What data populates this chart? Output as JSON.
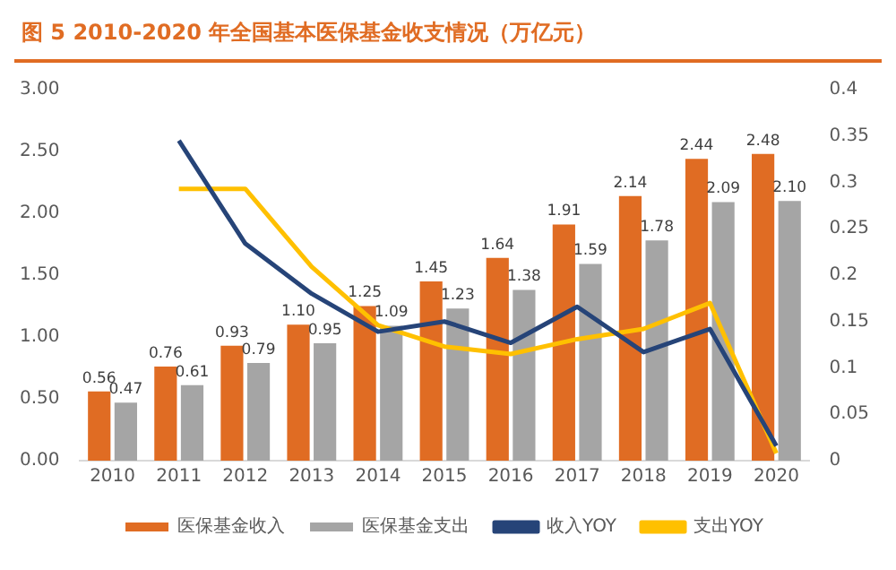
{
  "chart_data": {
    "type": "bar",
    "title": "图  5 2010-2020 年全国基本医保基金收支情况（万亿元）",
    "categories": [
      "2010",
      "2011",
      "2012",
      "2013",
      "2014",
      "2015",
      "2016",
      "2017",
      "2018",
      "2019",
      "2020"
    ],
    "series": [
      {
        "name": "医保基金收入",
        "color": "#e06c23",
        "values": [
          0.56,
          0.76,
          0.93,
          1.1,
          1.25,
          1.45,
          1.64,
          1.91,
          2.14,
          2.44,
          2.48
        ],
        "value_labels": [
          "0.56",
          "0.76",
          "0.93",
          "1.10",
          "1.25",
          "1.45",
          "1.64",
          "1.91",
          "2.14",
          "2.44",
          "2.48"
        ]
      },
      {
        "name": "医保基金支出",
        "color": "#a5a5a5",
        "values": [
          0.47,
          0.61,
          0.79,
          0.95,
          1.09,
          1.23,
          1.38,
          1.59,
          1.78,
          2.09,
          2.1
        ],
        "value_labels": [
          "0.47",
          "0.61",
          "0.79",
          "0.95",
          "1.09",
          "1.23",
          "1.38",
          "1.59",
          "1.78",
          "2.09",
          "2.10"
        ]
      },
      {
        "name": "收入YOY",
        "type": "line",
        "axis": "y2",
        "color": "#264478",
        "values": [
          null,
          0.345,
          0.234,
          0.18,
          0.139,
          0.15,
          0.127,
          0.166,
          0.117,
          0.142,
          0.016
        ]
      },
      {
        "name": "支出YOY",
        "type": "line",
        "axis": "y2",
        "color": "#ffc000",
        "values": [
          null,
          0.293,
          0.293,
          0.209,
          0.146,
          0.123,
          0.115,
          0.131,
          0.142,
          0.17,
          0.008
        ]
      }
    ],
    "ylim": [
      0,
      3
    ],
    "yticks": [
      {
        "value": 0,
        "label": "0.00"
      },
      {
        "value": 0.5,
        "label": "0.50"
      },
      {
        "value": 1,
        "label": "1.00"
      },
      {
        "value": 1.5,
        "label": "1.50"
      },
      {
        "value": 2,
        "label": "2.00"
      },
      {
        "value": 2.5,
        "label": "2.50"
      },
      {
        "value": 3,
        "label": "3.00"
      }
    ],
    "y2lim": [
      0,
      0.4
    ],
    "y2ticks": [
      0,
      0.05,
      0.1,
      0.15,
      0.2,
      0.25,
      0.3,
      0.35,
      0.4
    ],
    "grid": false,
    "legend": "bottom",
    "marker": "none",
    "line_style": "solid"
  }
}
